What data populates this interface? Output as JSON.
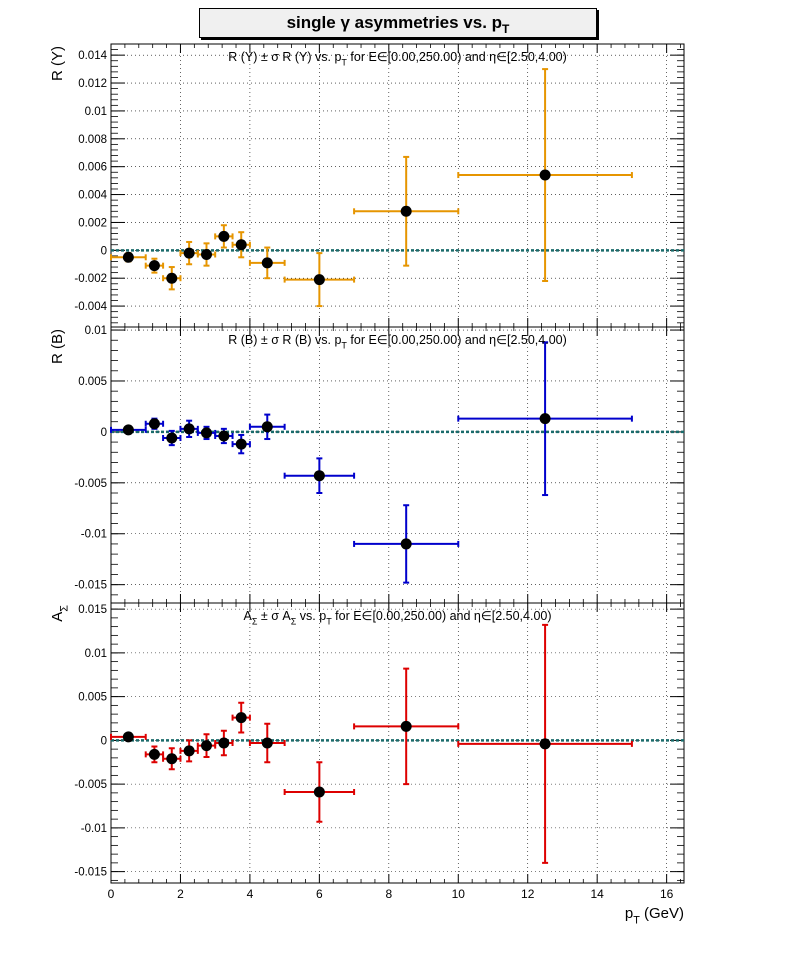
{
  "page_title": {
    "prefix": "single  γ asymmetries vs. p",
    "subscript": "T"
  },
  "chart_data": [
    {
      "type": "scatter",
      "panel": "top",
      "title": "R (Y) ± σ R (Y) vs. p_T for E∈[0.00,250.00) and η∈[2.50,4.00)",
      "ylabel": "R (Y)",
      "xlabel": "",
      "xlim": [
        0,
        16.5
      ],
      "ylim": [
        -0.0055,
        0.0148
      ],
      "yticks": [
        -0.004,
        -0.002,
        0,
        0.002,
        0.004,
        0.006,
        0.008,
        0.01,
        0.012,
        0.014
      ],
      "ytick_labels": [
        "-0.004",
        "-0.002",
        "0",
        "0.002",
        "0.004",
        "0.006",
        "0.008",
        "0.01",
        "0.012",
        "0.014"
      ],
      "color": "#e69500",
      "grid": true,
      "reference_line": 0,
      "points": [
        {
          "x": 0.5,
          "y": -0.0005,
          "xerr": 0.5,
          "yerr": 0.0003
        },
        {
          "x": 1.25,
          "y": -0.0011,
          "xerr": 0.25,
          "yerr": 0.0005
        },
        {
          "x": 1.75,
          "y": -0.002,
          "xerr": 0.25,
          "yerr": 0.0008
        },
        {
          "x": 2.25,
          "y": -0.0002,
          "xerr": 0.25,
          "yerr": 0.0008
        },
        {
          "x": 2.75,
          "y": -0.0003,
          "xerr": 0.25,
          "yerr": 0.0008
        },
        {
          "x": 3.25,
          "y": 0.001,
          "xerr": 0.25,
          "yerr": 0.0008
        },
        {
          "x": 3.75,
          "y": 0.0004,
          "xerr": 0.25,
          "yerr": 0.0009
        },
        {
          "x": 4.5,
          "y": -0.0009,
          "xerr": 0.5,
          "yerr": 0.0011
        },
        {
          "x": 6.0,
          "y": -0.0021,
          "xerr": 1.0,
          "yerr": 0.0019
        },
        {
          "x": 8.5,
          "y": 0.0028,
          "xerr": 1.5,
          "yerr": 0.0039
        },
        {
          "x": 12.5,
          "y": 0.0054,
          "xerr": 2.5,
          "yerr": 0.0076
        }
      ]
    },
    {
      "type": "scatter",
      "panel": "middle",
      "title": "R (B) ± σ R (B) vs. p_T for E∈[0.00,250.00) and η∈[2.50,4.00)",
      "ylabel": "R (B)",
      "xlabel": "",
      "xlim": [
        0,
        16.5
      ],
      "ylim": [
        -0.0168,
        0.0103
      ],
      "yticks": [
        -0.015,
        -0.01,
        -0.005,
        0,
        0.005,
        0.01
      ],
      "ytick_labels": [
        "-0.015",
        "-0.01",
        "-0.005",
        "0",
        "0.005",
        "0.01"
      ],
      "color": "#0000cc",
      "grid": true,
      "reference_line": 0,
      "points": [
        {
          "x": 0.5,
          "y": 0.0002,
          "xerr": 0.5,
          "yerr": 0.0003
        },
        {
          "x": 1.25,
          "y": 0.0008,
          "xerr": 0.25,
          "yerr": 0.0005
        },
        {
          "x": 1.75,
          "y": -0.0006,
          "xerr": 0.25,
          "yerr": 0.0007
        },
        {
          "x": 2.25,
          "y": 0.0003,
          "xerr": 0.25,
          "yerr": 0.0008
        },
        {
          "x": 2.75,
          "y": -0.0001,
          "xerr": 0.25,
          "yerr": 0.0006
        },
        {
          "x": 3.25,
          "y": -0.0004,
          "xerr": 0.25,
          "yerr": 0.0007
        },
        {
          "x": 3.75,
          "y": -0.0012,
          "xerr": 0.25,
          "yerr": 0.0009
        },
        {
          "x": 4.5,
          "y": 0.0005,
          "xerr": 0.5,
          "yerr": 0.0012
        },
        {
          "x": 6.0,
          "y": -0.0043,
          "xerr": 1.0,
          "yerr": 0.0017
        },
        {
          "x": 8.5,
          "y": -0.011,
          "xerr": 1.5,
          "yerr": 0.0038
        },
        {
          "x": 12.5,
          "y": 0.0013,
          "xerr": 2.5,
          "yerr": 0.0075
        }
      ]
    },
    {
      "type": "scatter",
      "panel": "bottom",
      "title": "A_Σ ± σ A_Σ vs. p_T for E∈[0.00,250.00) and η∈[2.50,4.00)",
      "ylabel": "A_Σ",
      "xlabel": "p_T (GeV)",
      "xlim": [
        0,
        16.5
      ],
      "ylim": [
        -0.0163,
        0.0157
      ],
      "yticks": [
        -0.015,
        -0.01,
        -0.005,
        0,
        0.005,
        0.01,
        0.015
      ],
      "ytick_labels": [
        "-0.015",
        "-0.01",
        "-0.005",
        "0",
        "0.005",
        "0.01",
        "0.015"
      ],
      "xticks": [
        0,
        2,
        4,
        6,
        8,
        10,
        12,
        14,
        16
      ],
      "xtick_labels": [
        "0",
        "2",
        "4",
        "6",
        "8",
        "10",
        "12",
        "14",
        "16"
      ],
      "color": "#dd0000",
      "grid": true,
      "reference_line": 0,
      "points": [
        {
          "x": 0.5,
          "y": 0.0004,
          "xerr": 0.5,
          "yerr": 0.0003
        },
        {
          "x": 1.25,
          "y": -0.0016,
          "xerr": 0.25,
          "yerr": 0.0009
        },
        {
          "x": 1.75,
          "y": -0.0021,
          "xerr": 0.25,
          "yerr": 0.0012
        },
        {
          "x": 2.25,
          "y": -0.0012,
          "xerr": 0.25,
          "yerr": 0.0012
        },
        {
          "x": 2.75,
          "y": -0.0006,
          "xerr": 0.25,
          "yerr": 0.0013
        },
        {
          "x": 3.25,
          "y": -0.0003,
          "xerr": 0.25,
          "yerr": 0.0014
        },
        {
          "x": 3.75,
          "y": 0.0026,
          "xerr": 0.25,
          "yerr": 0.0017
        },
        {
          "x": 4.5,
          "y": -0.0003,
          "xerr": 0.5,
          "yerr": 0.0022
        },
        {
          "x": 6.0,
          "y": -0.0059,
          "xerr": 1.0,
          "yerr": 0.0034
        },
        {
          "x": 8.5,
          "y": 0.0016,
          "xerr": 1.5,
          "yerr": 0.0066
        },
        {
          "x": 12.5,
          "y": -0.0004,
          "xerr": 2.5,
          "yerr": 0.0136
        }
      ]
    }
  ]
}
